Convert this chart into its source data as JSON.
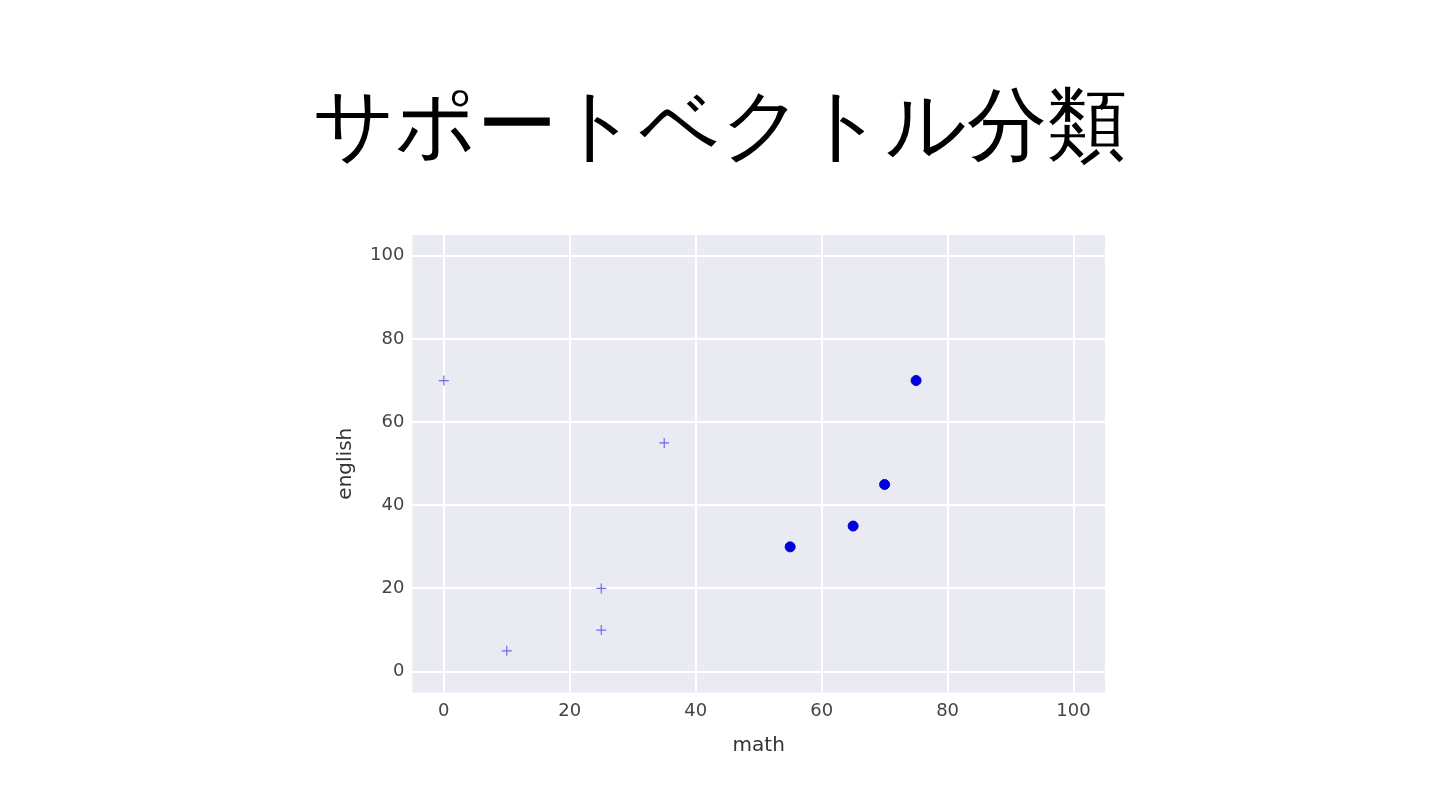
{
  "chart_data": {
    "type": "scatter",
    "title": "サポートベクトル分類",
    "xlabel": "math",
    "ylabel": "english",
    "xlim": [
      -5,
      105
    ],
    "ylim": [
      -5,
      105
    ],
    "xticks": [
      0,
      20,
      40,
      60,
      80,
      100
    ],
    "yticks": [
      0,
      20,
      40,
      60,
      80,
      100
    ],
    "grid": true,
    "legend": false,
    "series": [
      {
        "color": "#6b6bf0",
        "marker": "cross",
        "x": [
          0,
          10,
          25,
          25,
          35
        ],
        "values": [
          70,
          5,
          20,
          10,
          55
        ]
      },
      {
        "color": "#0000e0",
        "marker": "circle",
        "x": [
          55,
          65,
          70,
          75
        ],
        "values": [
          30,
          35,
          45,
          70
        ]
      }
    ]
  }
}
